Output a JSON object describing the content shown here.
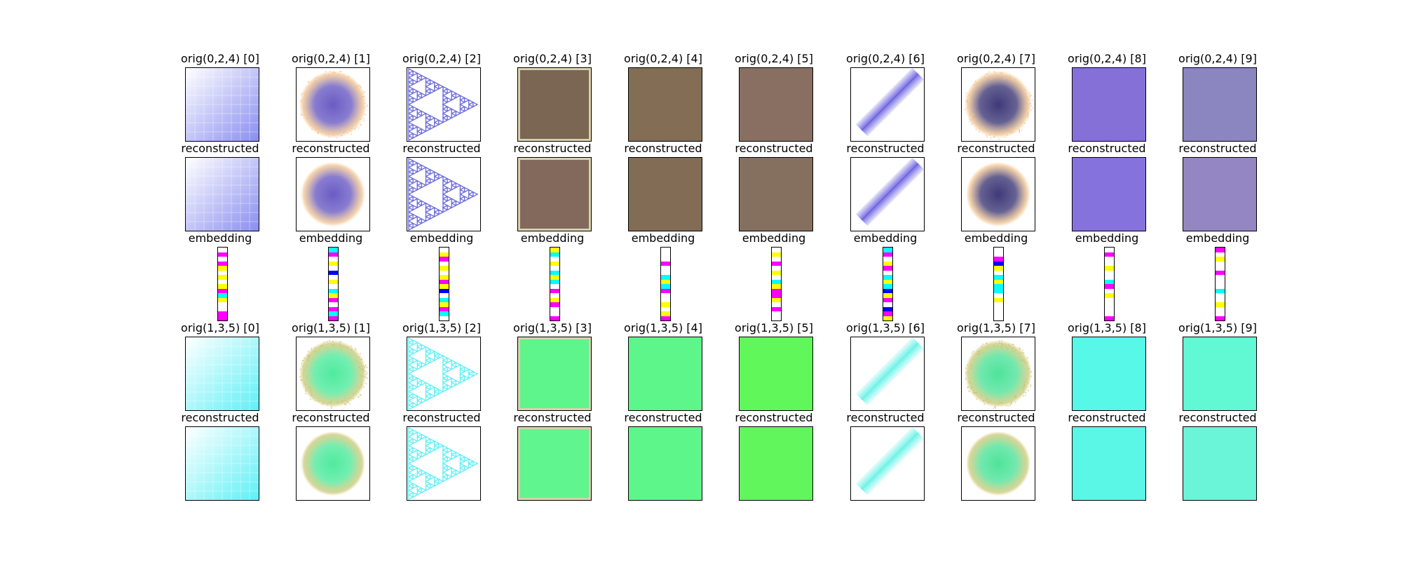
{
  "figure": {
    "rows": [
      {
        "kind": "image",
        "group": "a",
        "role": "orig",
        "labels": [
          "orig(0,2,4) [0]",
          "orig(0,2,4) [1]",
          "orig(0,2,4) [2]",
          "orig(0,2,4) [3]",
          "orig(0,2,4) [4]",
          "orig(0,2,4) [5]",
          "orig(0,2,4) [6]",
          "orig(0,2,4) [7]",
          "orig(0,2,4) [8]",
          "orig(0,2,4) [9]"
        ]
      },
      {
        "kind": "image",
        "group": "a",
        "role": "recon",
        "labels": [
          "reconstructed",
          "reconstructed",
          "reconstructed",
          "reconstructed",
          "reconstructed",
          "reconstructed",
          "reconstructed",
          "reconstructed",
          "reconstructed",
          "reconstructed"
        ]
      },
      {
        "kind": "embedding",
        "labels": [
          "embedding",
          "embedding",
          "embedding",
          "embedding",
          "embedding",
          "embedding",
          "embedding",
          "embedding",
          "embedding",
          "embedding"
        ]
      },
      {
        "kind": "image",
        "group": "b",
        "role": "orig",
        "labels": [
          "orig(1,3,5) [0]",
          "orig(1,3,5) [1]",
          "orig(1,3,5) [2]",
          "orig(1,3,5) [3]",
          "orig(1,3,5) [4]",
          "orig(1,3,5) [5]",
          "orig(1,3,5) [6]",
          "orig(1,3,5) [7]",
          "orig(1,3,5) [8]",
          "orig(1,3,5) [9]"
        ]
      },
      {
        "kind": "image",
        "group": "b",
        "role": "recon",
        "labels": [
          "reconstructed",
          "reconstructed",
          "reconstructed",
          "reconstructed",
          "reconstructed",
          "reconstructed",
          "reconstructed",
          "reconstructed",
          "reconstructed",
          "reconstructed"
        ]
      }
    ],
    "patterns": [
      "grid-gradient",
      "radial-blob",
      "sierpinski",
      "framed-flat",
      "flat",
      "flat",
      "diagonal-stripe",
      "radial-blob-dark",
      "flat",
      "flat"
    ],
    "colors_a": {
      "orig": [
        "#8a8ef0",
        "#6a5cc4",
        "#6f6fdc",
        "#7b6553",
        "#836e55",
        "#896f62",
        "#6a60e0",
        "#3f3a78",
        "#8570d8",
        "#8b85c0"
      ],
      "recon": [
        "#8a8ef0",
        "#6a5cc4",
        "#6f6fdc",
        "#82695c",
        "#826c55",
        "#85705f",
        "#6a60e0",
        "#3f3a78",
        "#8672dc",
        "#9486c2"
      ],
      "accent": "#f0c088"
    },
    "colors_b": {
      "orig": [
        "#5ef0f6",
        "#4fea9e",
        "#66f0f6",
        "#5ef58c",
        "#5cf68a",
        "#60f75a",
        "#66f2e6",
        "#4fe39a",
        "#58f8e8",
        "#60f9d4"
      ],
      "recon": [
        "#5ef0f6",
        "#4fea9e",
        "#66f0f6",
        "#60f58e",
        "#5cf68a",
        "#60f65c",
        "#66f2e6",
        "#4fe39a",
        "#5af6e6",
        "#6af4d8"
      ],
      "accent": "#c9c36a"
    },
    "embeddings": [
      [
        "#ffffff",
        "#ff00ff",
        "#ffffff",
        "#ff00ff",
        "#ffff00",
        "#ffffff",
        "#ffff00",
        "#ffffff",
        "#ffff00",
        "#ff00ff",
        "#00ffff",
        "#ffff00",
        "#ffffff",
        "#ffffff",
        "#ff00ff",
        "#ff00ff"
      ],
      [
        "#00ffff",
        "#ff00ff",
        "#ffffff",
        "#ffff00",
        "#ffffff",
        "#0000ff",
        "#ffffff",
        "#ffff00",
        "#ffffff",
        "#00ffff",
        "#ffff00",
        "#ff00ff",
        "#ffffff",
        "#ff00ff",
        "#00ffff",
        "#ff00ff"
      ],
      [
        "#ffffff",
        "#ffff00",
        "#ff00ff",
        "#ffffff",
        "#ffff00",
        "#ffffff",
        "#ffff00",
        "#ff00ff",
        "#ffff00",
        "#0000ff",
        "#ffffff",
        "#00ffff",
        "#ffff00",
        "#ff00ff",
        "#00ffff",
        "#ffffff"
      ],
      [
        "#ffff00",
        "#00ffff",
        "#ffffff",
        "#ffff00",
        "#ffffff",
        "#00ffff",
        "#ffff00",
        "#00ffff",
        "#ffffff",
        "#ff00ff",
        "#ffffff",
        "#ffff00",
        "#ff00ff",
        "#ffffff",
        "#ffffff",
        "#ff00ff"
      ],
      [
        "#ffffff",
        "#ffffff",
        "#ffffff",
        "#ff00ff",
        "#ffffff",
        "#ffffff",
        "#00ffff",
        "#ffff00",
        "#00ffff",
        "#ff00ff",
        "#ffffff",
        "#ffffff",
        "#ffff00",
        "#ffffff",
        "#ffff00",
        "#ff00ff"
      ],
      [
        "#ffffff",
        "#ffff00",
        "#ffffff",
        "#ff00ff",
        "#ffffff",
        "#ffff00",
        "#ffffff",
        "#00ffff",
        "#ffff00",
        "#ff00ff",
        "#ff00ff",
        "#ffff00",
        "#ffffff",
        "#ff00ff",
        "#ffffff",
        "#ffffff"
      ],
      [
        "#00ffff",
        "#ff00ff",
        "#ffffff",
        "#ffff00",
        "#ff00ff",
        "#ffffff",
        "#00ffff",
        "#ffff00",
        "#00ffff",
        "#0000ff",
        "#ffff00",
        "#ff00ff",
        "#ffffff",
        "#0000ff",
        "#ff00ff",
        "#ffff00"
      ],
      [
        "#ffffff",
        "#ffffff",
        "#ff00ff",
        "#0000ff",
        "#ffff00",
        "#ffffff",
        "#00ffff",
        "#ffff00",
        "#00ffff",
        "#00ffff",
        "#ffffff",
        "#ffff00",
        "#ffffff",
        "#ffffff",
        "#ffffff",
        "#ffffff"
      ],
      [
        "#ffffff",
        "#ff00ff",
        "#ffffff",
        "#ffffff",
        "#ffff00",
        "#ffffff",
        "#ffffff",
        "#00ffff",
        "#ff00ff",
        "#ffffff",
        "#ffff00",
        "#ffffff",
        "#ffffff",
        "#ffffff",
        "#ffffff",
        "#ff00ff"
      ],
      [
        "#ff00ff",
        "#ffffff",
        "#ffff00",
        "#ffffff",
        "#ffffff",
        "#ff00ff",
        "#ffffff",
        "#ffffff",
        "#ffffff",
        "#00ffff",
        "#ffffff",
        "#ffffff",
        "#ffff00",
        "#ffffff",
        "#ffffff",
        "#ff00ff"
      ]
    ]
  }
}
